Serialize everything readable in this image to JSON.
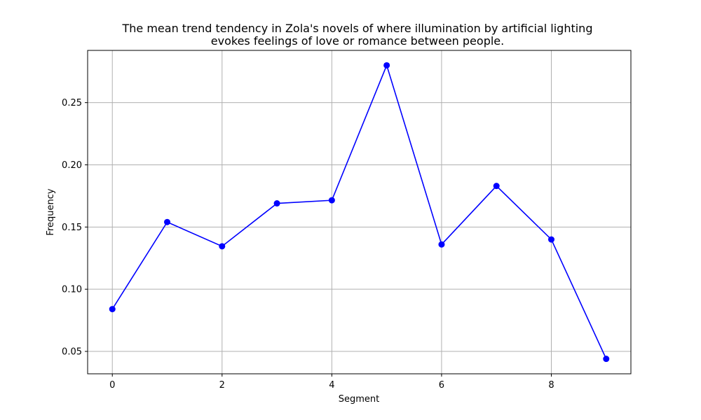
{
  "chart_data": {
    "type": "line",
    "title": [
      "The mean trend tendency in Zola's novels of where illumination by artificial lighting",
      "evokes feelings of love or romance between people."
    ],
    "xlabel": "Segment",
    "ylabel": "Frequency",
    "xlim": [
      -0.45,
      9.45
    ],
    "ylim": [
      0.032,
      0.292
    ],
    "x_ticks": [
      0,
      2,
      4,
      6,
      8
    ],
    "x_tick_labels": [
      "0",
      "2",
      "4",
      "6",
      "8"
    ],
    "y_ticks": [
      0.05,
      0.1,
      0.15,
      0.2,
      0.25
    ],
    "y_tick_labels": [
      "0.05",
      "0.10",
      "0.15",
      "0.20",
      "0.25"
    ],
    "grid": true,
    "series": [
      {
        "color": "#0000ff",
        "marker": "circle",
        "x": [
          0,
          1,
          2,
          3,
          4,
          5,
          6,
          7,
          8,
          9
        ],
        "y": [
          0.084,
          0.154,
          0.1345,
          0.169,
          0.1715,
          0.28,
          0.136,
          0.183,
          0.14,
          0.044
        ]
      }
    ]
  }
}
